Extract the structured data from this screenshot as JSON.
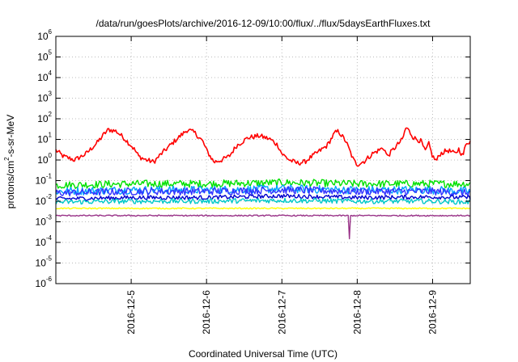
{
  "chart_data": {
    "type": "line",
    "title": "/data/run/goesPlots/archive/2016-12-09/10:00/flux/../flux/5daysEarthFluxes.txt",
    "xlabel": "Coordinated Universal Time (UTC)",
    "ylabel_parts": [
      "protons/cm",
      "2",
      "-s-sr-MeV"
    ],
    "yscale": "log",
    "ylim_exp": [
      -6,
      6
    ],
    "y_tick_exponents": [
      -6,
      -5,
      -4,
      -3,
      -2,
      -1,
      0,
      1,
      2,
      3,
      4,
      5,
      6
    ],
    "y_tick_base": "10",
    "xlim_days": [
      0,
      5.5
    ],
    "x_ticks": [
      {
        "label": "2016-12-5",
        "day": 1.0
      },
      {
        "label": "2016-12-6",
        "day": 2.0
      },
      {
        "label": "2016-12-7",
        "day": 3.0
      },
      {
        "label": "2016-12-8",
        "day": 4.0
      },
      {
        "label": "2016-12-9",
        "day": 5.0
      }
    ],
    "grid": true,
    "series": [
      {
        "color": "#ff0000",
        "noise": 0.12,
        "points": [
          [
            0.0,
            3
          ],
          [
            0.1,
            1.5
          ],
          [
            0.25,
            1.0
          ],
          [
            0.4,
            2
          ],
          [
            0.55,
            7
          ],
          [
            0.65,
            20
          ],
          [
            0.7,
            30
          ],
          [
            0.8,
            25
          ],
          [
            0.9,
            12
          ],
          [
            1.0,
            5
          ],
          [
            1.05,
            3
          ],
          [
            1.1,
            1.5
          ],
          [
            1.2,
            1.0
          ],
          [
            1.3,
            0.8
          ],
          [
            1.4,
            2
          ],
          [
            1.6,
            10
          ],
          [
            1.75,
            30
          ],
          [
            1.85,
            20
          ],
          [
            1.95,
            8
          ],
          [
            2.0,
            3
          ],
          [
            2.05,
            1.5
          ],
          [
            2.1,
            0.8
          ],
          [
            2.2,
            1.0
          ],
          [
            2.3,
            1.5
          ],
          [
            2.4,
            5
          ],
          [
            2.55,
            12
          ],
          [
            2.7,
            15
          ],
          [
            2.85,
            10
          ],
          [
            2.95,
            5
          ],
          [
            3.0,
            2
          ],
          [
            3.1,
            1.0
          ],
          [
            3.2,
            0.7
          ],
          [
            3.3,
            0.8
          ],
          [
            3.4,
            1.5
          ],
          [
            3.6,
            5
          ],
          [
            3.7,
            20
          ],
          [
            3.75,
            25
          ],
          [
            3.85,
            8
          ],
          [
            3.95,
            1.0
          ],
          [
            4.0,
            0.6
          ],
          [
            4.1,
            0.9
          ],
          [
            4.2,
            2
          ],
          [
            4.35,
            4
          ],
          [
            4.4,
            1.5
          ],
          [
            4.5,
            4
          ],
          [
            4.6,
            10
          ],
          [
            4.65,
            40
          ],
          [
            4.75,
            12
          ],
          [
            4.85,
            8
          ],
          [
            4.9,
            2.5
          ],
          [
            4.95,
            6
          ],
          [
            5.0,
            1.5
          ],
          [
            5.05,
            0.9
          ],
          [
            5.1,
            2
          ],
          [
            5.2,
            3
          ],
          [
            5.3,
            2
          ],
          [
            5.35,
            3.5
          ],
          [
            5.4,
            1.5
          ],
          [
            5.45,
            7
          ],
          [
            5.5,
            8
          ]
        ]
      },
      {
        "color": "#00e000",
        "noise": 0.18,
        "points": [
          [
            0.0,
            0.06
          ],
          [
            1.0,
            0.07
          ],
          [
            2.0,
            0.07
          ],
          [
            3.0,
            0.08
          ],
          [
            4.0,
            0.07
          ],
          [
            5.0,
            0.07
          ],
          [
            5.5,
            0.07
          ]
        ]
      },
      {
        "color": "#00a0ff",
        "noise": 0.2,
        "points": [
          [
            0.0,
            0.03
          ],
          [
            1.0,
            0.035
          ],
          [
            2.0,
            0.035
          ],
          [
            3.0,
            0.04
          ],
          [
            4.0,
            0.035
          ],
          [
            5.0,
            0.035
          ],
          [
            5.5,
            0.03
          ]
        ]
      },
      {
        "color": "#3333ff",
        "noise": 0.18,
        "points": [
          [
            0.0,
            0.025
          ],
          [
            1.0,
            0.03
          ],
          [
            2.0,
            0.03
          ],
          [
            3.0,
            0.035
          ],
          [
            4.0,
            0.03
          ],
          [
            5.0,
            0.03
          ],
          [
            5.5,
            0.025
          ]
        ]
      },
      {
        "color": "#0000cc",
        "noise": 0.1,
        "points": [
          [
            0.0,
            0.013
          ],
          [
            1.0,
            0.015
          ],
          [
            2.0,
            0.015
          ],
          [
            3.0,
            0.018
          ],
          [
            4.0,
            0.015
          ],
          [
            5.0,
            0.016
          ],
          [
            5.5,
            0.015
          ]
        ]
      },
      {
        "color": "#00c8c8",
        "noise": 0.12,
        "points": [
          [
            0.0,
            0.009
          ],
          [
            1.0,
            0.01
          ],
          [
            2.0,
            0.01
          ],
          [
            3.0,
            0.011
          ],
          [
            4.0,
            0.01
          ],
          [
            5.0,
            0.01
          ],
          [
            5.5,
            0.009
          ]
        ]
      },
      {
        "color": "#ffff00",
        "noise": 0.03,
        "points": [
          [
            0.0,
            0.0045
          ],
          [
            1.0,
            0.0045
          ],
          [
            2.0,
            0.0045
          ],
          [
            3.0,
            0.0045
          ],
          [
            4.0,
            0.0045
          ],
          [
            5.0,
            0.0045
          ],
          [
            5.5,
            0.0045
          ]
        ]
      },
      {
        "color": "#993388",
        "noise": 0.03,
        "dip": {
          "day": 3.9,
          "value": 0.00015
        },
        "points": [
          [
            0.0,
            0.002
          ],
          [
            1.0,
            0.002
          ],
          [
            2.0,
            0.002
          ],
          [
            3.0,
            0.002
          ],
          [
            4.0,
            0.002
          ],
          [
            5.0,
            0.002
          ],
          [
            5.5,
            0.002
          ]
        ]
      }
    ]
  }
}
